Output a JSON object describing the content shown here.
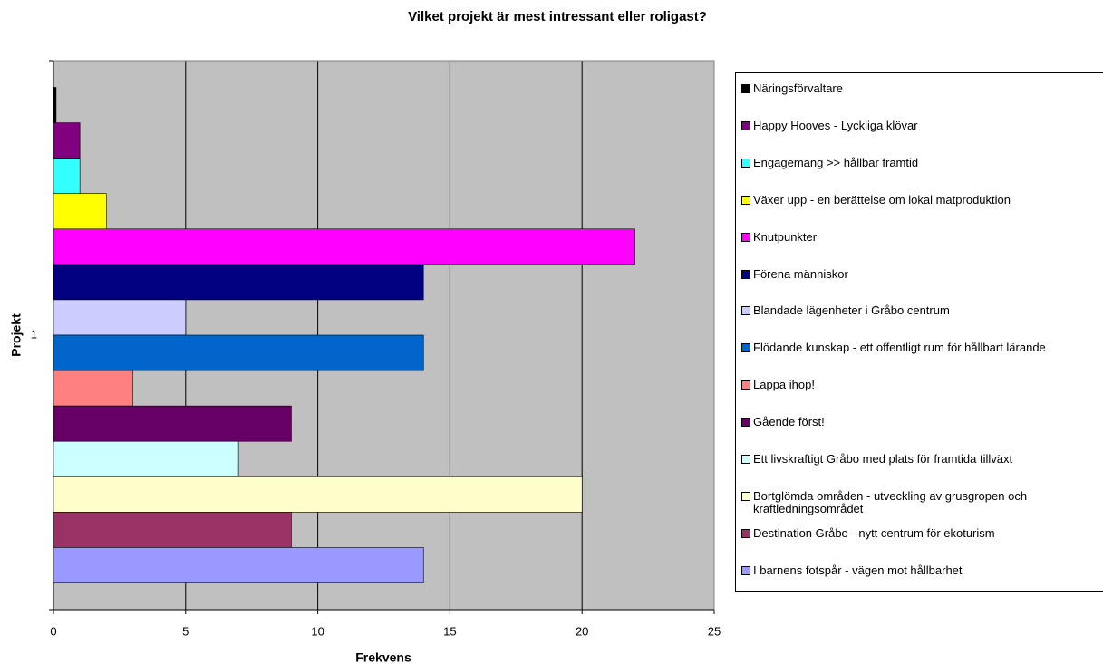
{
  "chart_data": {
    "type": "bar",
    "orientation": "horizontal",
    "title": "Vilket projekt är mest intressant eller roligast?",
    "xlabel": "Frekvens",
    "ylabel": "Projekt",
    "categories": [
      "1"
    ],
    "xlim": [
      0,
      25
    ],
    "xticks": [
      0,
      5,
      10,
      15,
      20,
      25
    ],
    "grid": true,
    "series": [
      {
        "name": "Näringsförvaltare",
        "color": "#000000",
        "values": [
          0.1
        ]
      },
      {
        "name": "Happy Hooves - Lyckliga klövar",
        "color": "#800080",
        "values": [
          1
        ]
      },
      {
        "name": "Engagemang >> hållbar framtid",
        "color": "#33ffff",
        "values": [
          1
        ]
      },
      {
        "name": "Växer upp - en berättelse om lokal matproduktion",
        "color": "#ffff00",
        "values": [
          2
        ]
      },
      {
        "name": "Knutpunkter",
        "color": "#ff00ff",
        "values": [
          22
        ]
      },
      {
        "name": "Förena människor",
        "color": "#000080",
        "values": [
          14
        ]
      },
      {
        "name": "Blandade lägenheter i Gråbo centrum",
        "color": "#ccccff",
        "values": [
          5
        ]
      },
      {
        "name": "Flödande kunskap - ett offentligt rum för hållbart lärande",
        "color": "#0066cc",
        "values": [
          14
        ]
      },
      {
        "name": "Lappa ihop!",
        "color": "#ff8080",
        "values": [
          3
        ]
      },
      {
        "name": "Gående först!",
        "color": "#660066",
        "values": [
          9
        ]
      },
      {
        "name": "Ett livskraftigt Gråbo med plats för framtida tillväxt",
        "color": "#ccffff",
        "values": [
          7
        ]
      },
      {
        "name": "Bortglömda områden - utveckling av grusgropen och kraftledningsområdet",
        "color": "#ffffcc",
        "values": [
          20
        ]
      },
      {
        "name": "Destination Gråbo - nytt centrum för ekoturism",
        "color": "#993366",
        "values": [
          9
        ]
      },
      {
        "name": "I barnens fotspår - vägen mot hållbarhet",
        "color": "#9999ff",
        "values": [
          14
        ]
      }
    ]
  }
}
